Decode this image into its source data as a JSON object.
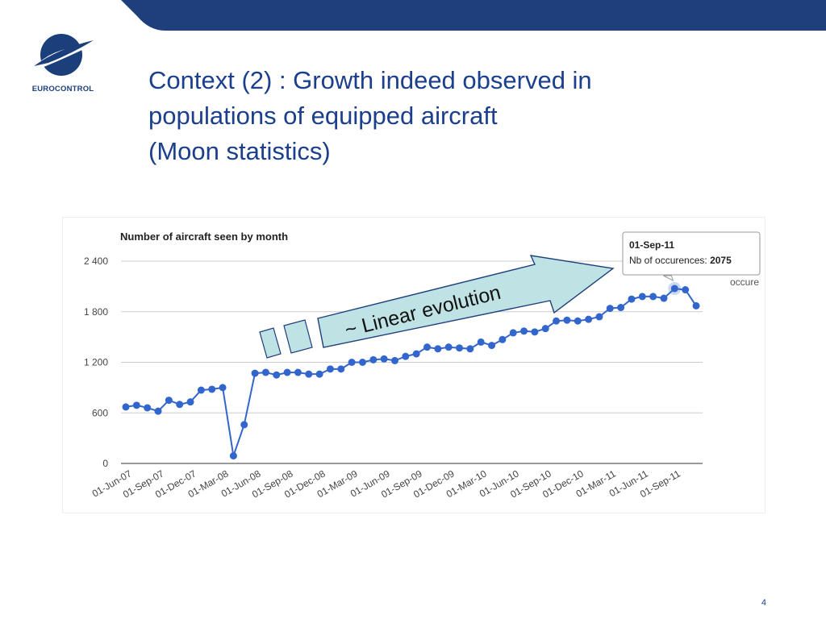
{
  "slide": {
    "title_lines": [
      "Context (2) : Growth indeed observed in",
      "populations of equipped aircraft",
      "(Moon statistics)"
    ],
    "page_number": "4",
    "brand_colors": {
      "bar": "#1f3e7c",
      "title": "#1b3f8c"
    }
  },
  "logo": {
    "text": "EUROCONTROL"
  },
  "annotation": {
    "text": "~ Linear evolution",
    "fill": "#bfe3e5",
    "stroke": "#1f3e7c"
  },
  "tooltip": {
    "date": "01-Sep-11",
    "label": "Nb of occurences:",
    "value": "2075"
  },
  "legend_fragment": "occure",
  "chart_data": {
    "type": "line",
    "title": "Number of aircraft seen by month",
    "xlabel": "",
    "ylabel": "",
    "ylim": [
      0,
      2400
    ],
    "yticks": [
      0,
      600,
      1200,
      1800,
      2400
    ],
    "ytick_labels": [
      "0",
      "600",
      "1 200",
      "1 800",
      "2 400"
    ],
    "x": [
      "Jun-07",
      "Jul-07",
      "Aug-07",
      "Sep-07",
      "Oct-07",
      "Nov-07",
      "Dec-07",
      "Jan-08",
      "Feb-08",
      "Mar-08",
      "Apr-08",
      "May-08",
      "Jun-08",
      "Jul-08",
      "Aug-08",
      "Sep-08",
      "Oct-08",
      "Nov-08",
      "Dec-08",
      "Jan-09",
      "Feb-09",
      "Mar-09",
      "Apr-09",
      "May-09",
      "Jun-09",
      "Jul-09",
      "Aug-09",
      "Sep-09",
      "Oct-09",
      "Nov-09",
      "Dec-09",
      "Jan-10",
      "Feb-10",
      "Mar-10",
      "Apr-10",
      "May-10",
      "Jun-10",
      "Jul-10",
      "Aug-10",
      "Sep-10",
      "Oct-10",
      "Nov-10",
      "Dec-10",
      "Jan-11",
      "Feb-11",
      "Mar-11",
      "Apr-11",
      "May-11",
      "Jun-11",
      "Jul-11",
      "Aug-11",
      "Sep-11",
      "Oct-11",
      "Nov-11"
    ],
    "xtick_labels": [
      "01-Jun-07",
      "01-Sep-07",
      "01-Dec-07",
      "01-Mar-08",
      "01-Jun-08",
      "01-Sep-08",
      "01-Dec-08",
      "01-Mar-09",
      "01-Jun-09",
      "01-Sep-09",
      "01-Dec-09",
      "01-Mar-10",
      "01-Jun-10",
      "01-Sep-10",
      "01-Dec-10",
      "01-Mar-11",
      "01-Jun-11",
      "01-Sep-11"
    ],
    "series": [
      {
        "color": "#3366cc",
        "values": [
          670,
          690,
          660,
          620,
          750,
          700,
          730,
          870,
          880,
          900,
          90,
          460,
          1070,
          1080,
          1050,
          1080,
          1080,
          1060,
          1060,
          1120,
          1120,
          1200,
          1200,
          1230,
          1240,
          1220,
          1270,
          1300,
          1380,
          1360,
          1380,
          1370,
          1360,
          1440,
          1400,
          1470,
          1550,
          1570,
          1560,
          1600,
          1690,
          1700,
          1690,
          1710,
          1740,
          1840,
          1850,
          1950,
          1980,
          1980,
          1960,
          2075,
          2060,
          1870
        ]
      }
    ],
    "highlight_index": 51,
    "grid": true
  }
}
